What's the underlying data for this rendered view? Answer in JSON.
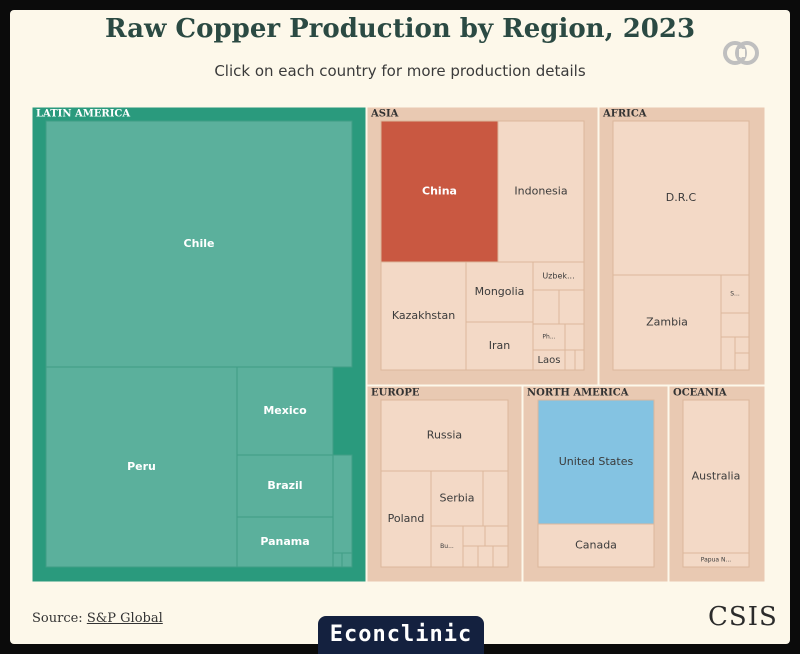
{
  "header": {
    "title": "Raw Copper Production by Region, 2023",
    "subtitle": "Click on each country for more production details"
  },
  "footer": {
    "source_prefix": "Source: ",
    "source_link": "S&P Global",
    "brand": "CSIS",
    "banner": "Econclinic"
  },
  "colors": {
    "latin_america_border": "#2a9a7d",
    "latin_america_fill": "#5bb09c",
    "default_border": "#e9c9b2",
    "default_fill": "#f3d9c6",
    "china": "#c95841",
    "united_states": "#84c3e2",
    "text_dark": "#3b3b3b",
    "text_light": "#ffffff"
  },
  "chart_data": {
    "type": "treemap",
    "title": "Raw Copper Production by Region, 2023",
    "regions": [
      {
        "name": "LATIN AMERICA",
        "countries": [
          {
            "name": "Chile"
          },
          {
            "name": "Peru"
          },
          {
            "name": "Mexico"
          },
          {
            "name": "Brazil"
          },
          {
            "name": "Panama"
          }
        ]
      },
      {
        "name": "ASIA",
        "countries": [
          {
            "name": "China"
          },
          {
            "name": "Indonesia"
          },
          {
            "name": "Kazakhstan"
          },
          {
            "name": "Mongolia"
          },
          {
            "name": "Uzbek..."
          },
          {
            "name": "Iran"
          },
          {
            "name": "Laos"
          },
          {
            "name": "Ph..."
          }
        ]
      },
      {
        "name": "AFRICA",
        "countries": [
          {
            "name": "D.R.C"
          },
          {
            "name": "Zambia"
          },
          {
            "name": "S..."
          }
        ]
      },
      {
        "name": "EUROPE",
        "countries": [
          {
            "name": "Russia"
          },
          {
            "name": "Poland"
          },
          {
            "name": "Serbia"
          },
          {
            "name": "Bu..."
          }
        ]
      },
      {
        "name": "NORTH AMERICA",
        "countries": [
          {
            "name": "United States"
          },
          {
            "name": "Canada"
          }
        ]
      },
      {
        "name": "OCEANIA",
        "countries": [
          {
            "name": "Australia"
          },
          {
            "name": "Papua N..."
          }
        ]
      }
    ]
  }
}
